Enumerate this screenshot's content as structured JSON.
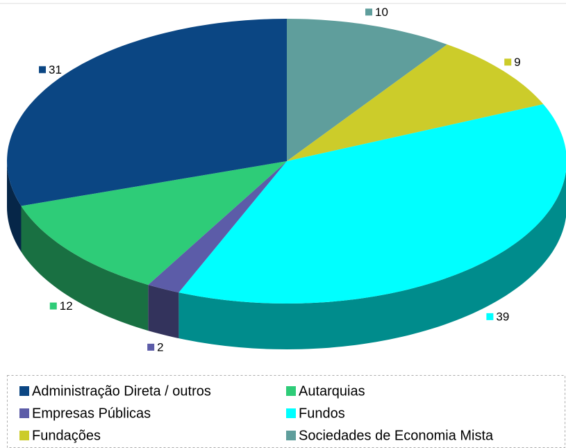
{
  "chart_data": {
    "type": "pie",
    "categories": [
      "Sociedades de Economia Mista",
      "Fundações",
      "Fundos",
      "Empresas Públicas",
      "Autarquias",
      "Administração Direta / outros"
    ],
    "values": [
      10,
      9,
      39,
      2,
      12,
      31
    ],
    "colors": [
      "#5f9e9c",
      "#cccc2a",
      "#00ffff",
      "#5c5ca8",
      "#2ecc78",
      "#0b4683"
    ],
    "legend_order": [
      5,
      4,
      3,
      2,
      1,
      0
    ]
  }
}
